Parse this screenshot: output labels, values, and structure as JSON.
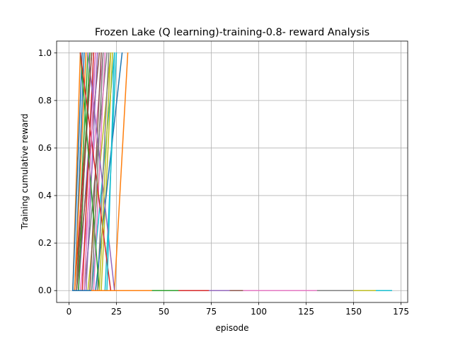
{
  "chart_data": {
    "type": "line",
    "title": "Frozen Lake (Q learning)-training-0.8- reward Analysis",
    "xlabel": "episode",
    "ylabel": "Training cumulative reward",
    "xlim": [
      -6.5,
      178.5
    ],
    "ylim": [
      -0.05,
      1.05
    ],
    "xticks": [
      0,
      25,
      50,
      75,
      100,
      125,
      150,
      175
    ],
    "yticks": [
      0.0,
      0.2,
      0.4,
      0.6,
      0.8,
      1.0
    ],
    "xtick_labels": [
      "0",
      "25",
      "50",
      "75",
      "100",
      "125",
      "150",
      "175"
    ],
    "ytick_labels": [
      "0.0",
      "0.2",
      "0.4",
      "0.6",
      "0.8",
      "1.0"
    ],
    "grid": true,
    "legend": "none",
    "color_cycle": [
      "#1f77b4",
      "#ff7f0e",
      "#2ca02c",
      "#d62728",
      "#9467bd",
      "#8c564b",
      "#e377c2",
      "#7f7f7f",
      "#bcbd22",
      "#17becf"
    ],
    "series": [
      {
        "x": [
          3,
          8
        ],
        "y": [
          0,
          1
        ]
      },
      {
        "x": [
          2,
          6
        ],
        "y": [
          0,
          1
        ]
      },
      {
        "x": [
          4,
          10
        ],
        "y": [
          0,
          1
        ]
      },
      {
        "x": [
          3,
          12
        ],
        "y": [
          0,
          1
        ]
      },
      {
        "x": [
          5,
          14
        ],
        "y": [
          0,
          1
        ]
      },
      {
        "x": [
          4,
          16
        ],
        "y": [
          0,
          1
        ]
      },
      {
        "x": [
          6,
          18
        ],
        "y": [
          0,
          1
        ]
      },
      {
        "x": [
          8,
          20
        ],
        "y": [
          0,
          1
        ]
      },
      {
        "x": [
          10,
          22
        ],
        "y": [
          0,
          1
        ]
      },
      {
        "x": [
          12,
          24
        ],
        "y": [
          0,
          1
        ]
      },
      {
        "x": [
          2,
          7
        ],
        "y": [
          0,
          1
        ]
      },
      {
        "x": [
          3,
          9
        ],
        "y": [
          0,
          1
        ]
      },
      {
        "x": [
          5,
          11
        ],
        "y": [
          0,
          1
        ]
      },
      {
        "x": [
          7,
          13
        ],
        "y": [
          0,
          1
        ]
      },
      {
        "x": [
          9,
          15
        ],
        "y": [
          0,
          1
        ]
      },
      {
        "x": [
          11,
          17
        ],
        "y": [
          0,
          1
        ]
      },
      {
        "x": [
          13,
          19
        ],
        "y": [
          0,
          1
        ]
      },
      {
        "x": [
          15,
          21
        ],
        "y": [
          0,
          1
        ]
      },
      {
        "x": [
          17,
          23
        ],
        "y": [
          0,
          1
        ]
      },
      {
        "x": [
          19,
          25
        ],
        "y": [
          0,
          1
        ]
      },
      {
        "x": [
          14,
          28
        ],
        "y": [
          0,
          1
        ]
      },
      {
        "x": [
          24,
          31
        ],
        "y": [
          0,
          1
        ]
      },
      {
        "x": [
          6,
          16
        ],
        "y": [
          1,
          0
        ]
      },
      {
        "x": [
          6,
          22
        ],
        "y": [
          1,
          0
        ]
      },
      {
        "x": [
          10,
          24
        ],
        "y": [
          1,
          0
        ]
      },
      {
        "x": [
          4,
          12
        ],
        "y": [
          0,
          1
        ]
      },
      {
        "x": [
          8,
          14
        ],
        "y": [
          0,
          1
        ]
      },
      {
        "x": [
          12,
          18
        ],
        "y": [
          0,
          1
        ]
      },
      {
        "x": [
          16,
          22
        ],
        "y": [
          0,
          1
        ]
      },
      {
        "x": [
          20,
          24
        ],
        "y": [
          0,
          1
        ]
      },
      {
        "x": [
          2,
          12
        ],
        "y": [
          0,
          0
        ]
      },
      {
        "x": [
          12,
          44
        ],
        "y": [
          0,
          0
        ]
      },
      {
        "x": [
          44,
          58
        ],
        "y": [
          0,
          0
        ]
      },
      {
        "x": [
          58,
          74
        ],
        "y": [
          0,
          0
        ]
      },
      {
        "x": [
          74,
          85
        ],
        "y": [
          0,
          0
        ]
      },
      {
        "x": [
          85,
          92
        ],
        "y": [
          0,
          0
        ]
      },
      {
        "x": [
          92,
          131
        ],
        "y": [
          0,
          0
        ]
      },
      {
        "x": [
          131,
          150
        ],
        "y": [
          0,
          0
        ]
      },
      {
        "x": [
          150,
          162
        ],
        "y": [
          0,
          0
        ]
      },
      {
        "x": [
          162,
          170
        ],
        "y": [
          0,
          0
        ]
      }
    ]
  }
}
